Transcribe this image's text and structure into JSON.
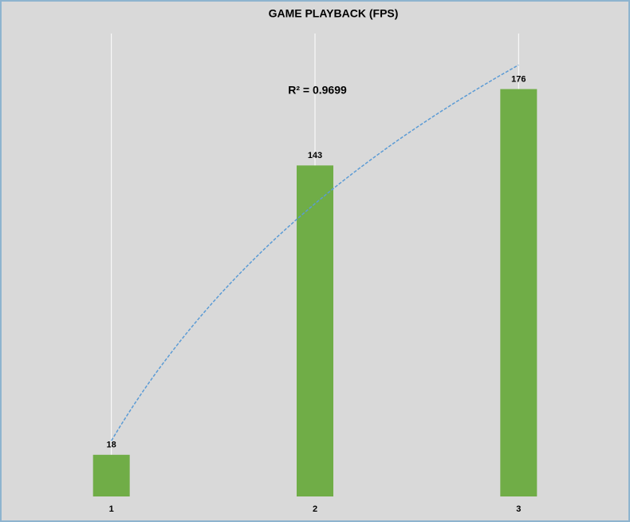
{
  "chart_data": {
    "type": "bar",
    "title": "GAME PLAYBACK (FPS)",
    "categories": [
      "1",
      "2",
      "3"
    ],
    "values": [
      18,
      143,
      176
    ],
    "color": "#70ad47",
    "ylim": [
      0,
      200
    ],
    "grid": true,
    "grid_color": "#ffffff",
    "background": "#d9d9d9",
    "trendline": {
      "type": "logarithmic",
      "color": "#5b9bd5",
      "label": "R² = 0.9699",
      "label_color": "#1ea5dd"
    }
  }
}
